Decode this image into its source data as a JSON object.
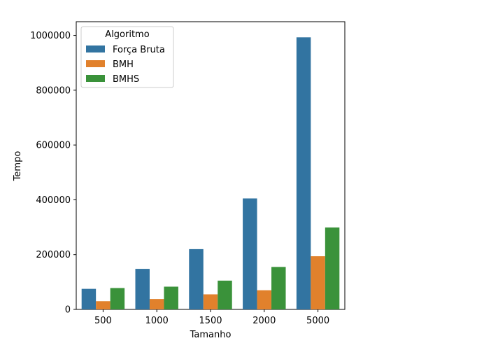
{
  "chart_data": {
    "type": "bar",
    "categories": [
      "500",
      "1000",
      "1500",
      "2000",
      "5000"
    ],
    "series": [
      {
        "name": "Força Bruta",
        "values": [
          75000,
          148000,
          220000,
          405000,
          993000
        ],
        "color": "#3274a1"
      },
      {
        "name": "BMH",
        "values": [
          30000,
          38000,
          55000,
          70000,
          194000
        ],
        "color": "#e1812c"
      },
      {
        "name": "BMHS",
        "values": [
          78000,
          83000,
          105000,
          155000,
          299000
        ],
        "color": "#3a923a"
      }
    ],
    "xlabel": "Tamanho",
    "ylabel": "Tempo",
    "ylim": [
      0,
      1050000
    ],
    "yticks": [
      0,
      200000,
      400000,
      600000,
      800000,
      1000000
    ],
    "ytick_labels": [
      "0",
      "200000",
      "400000",
      "600000",
      "800000",
      "1000000"
    ],
    "legend": {
      "title": "Algoritmo",
      "position": "top-left"
    },
    "grid": false
  }
}
